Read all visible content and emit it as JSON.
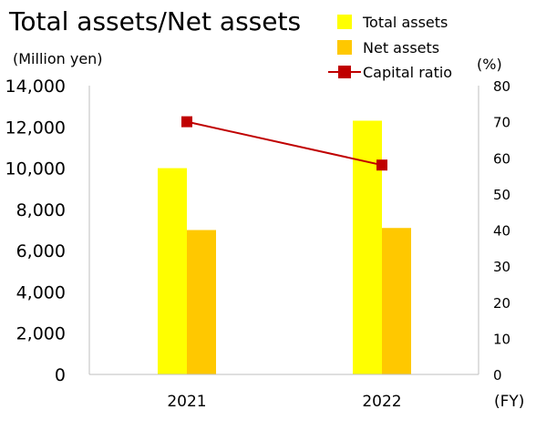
{
  "chart_data": {
    "type": "bar",
    "title": "Total assets/Net assets",
    "categories": [
      "2021",
      "2022"
    ],
    "xlabel": "(FY)",
    "y_left": {
      "unit_label": "(Million yen)",
      "range": [
        0,
        14000
      ],
      "ticks": [
        "14,000",
        "12,000",
        "10,000",
        "8,000",
        "6,000",
        "4,000",
        "2,000",
        "0"
      ]
    },
    "y_right": {
      "unit_label": "(%)",
      "range": [
        0,
        80
      ],
      "ticks": [
        "80",
        "70",
        "60",
        "50",
        "40",
        "30",
        "20",
        "10",
        "0"
      ]
    },
    "series": [
      {
        "name": "Total assets",
        "kind": "bar",
        "axis": "left",
        "color": "#FFFF00",
        "values": [
          10000,
          12300
        ]
      },
      {
        "name": "Net assets",
        "kind": "bar",
        "axis": "left",
        "color": "#FFC800",
        "values": [
          7000,
          7100
        ]
      },
      {
        "name": "Capital ratio",
        "kind": "line",
        "axis": "right",
        "color": "#C00000",
        "values": [
          70,
          58
        ]
      }
    ],
    "legend_position": "top-right",
    "grid": false
  }
}
